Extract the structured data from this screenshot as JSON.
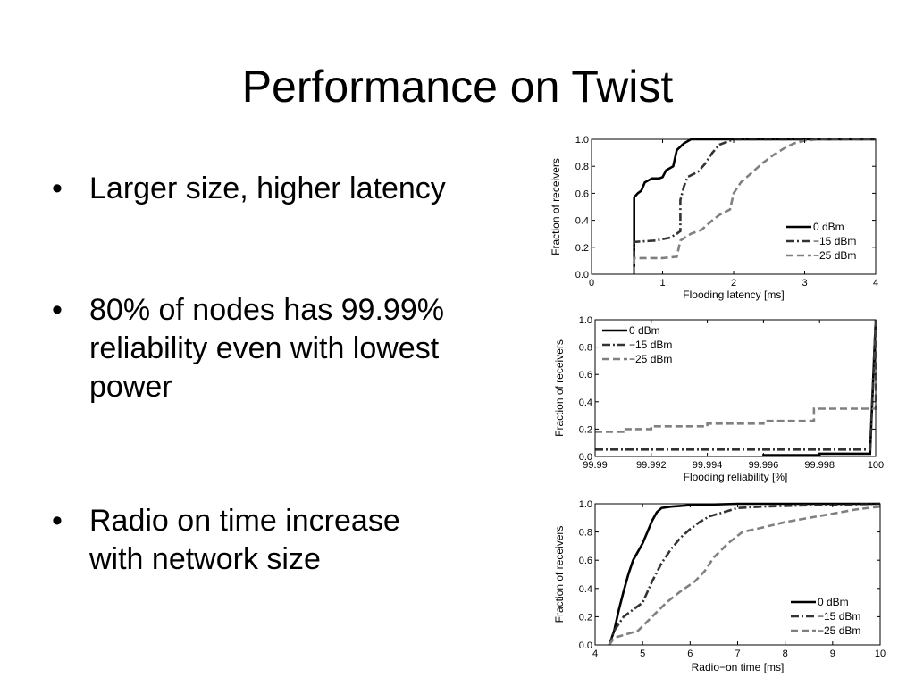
{
  "slide": {
    "title": "Performance on Twist",
    "bullets": [
      {
        "marker": "•",
        "lines": [
          "Larger size, higher latency"
        ]
      },
      {
        "marker": "•",
        "lines": [
          "80% of nodes has 99.99%",
          "reliability even with lowest",
          "power"
        ]
      },
      {
        "marker": "•",
        "lines": [
          "Radio on time increase",
          "with network size"
        ]
      }
    ]
  },
  "chart_data": [
    {
      "type": "line",
      "xlabel": "Flooding latency [ms]",
      "ylabel": "Fraction of receivers",
      "xlim": [
        0,
        4
      ],
      "ylim": [
        0,
        1
      ],
      "xticks": [
        0,
        1,
        2,
        3,
        4
      ],
      "xtick_labels": [
        "0",
        "1",
        "2",
        "3",
        "4"
      ],
      "yticks": [
        0,
        0.2,
        0.4,
        0.6,
        0.8,
        1.0
      ],
      "ytick_labels": [
        "0.0",
        "0.2",
        "0.4",
        "0.6",
        "0.8",
        "1.0"
      ],
      "legend_position": "bottom-right",
      "series": [
        {
          "name": "0 dBm",
          "color": "#000000",
          "dash": "solid",
          "points": [
            [
              0.6,
              0
            ],
            [
              0.6,
              0.57
            ],
            [
              0.65,
              0.6
            ],
            [
              0.7,
              0.62
            ],
            [
              0.75,
              0.68
            ],
            [
              0.85,
              0.71
            ],
            [
              0.95,
              0.71
            ],
            [
              1.0,
              0.72
            ],
            [
              1.05,
              0.77
            ],
            [
              1.15,
              0.8
            ],
            [
              1.2,
              0.92
            ],
            [
              1.3,
              0.97
            ],
            [
              1.4,
              1.0
            ],
            [
              4.0,
              1.0
            ]
          ]
        },
        {
          "name": "−15 dBm",
          "color": "#333333",
          "dash": "dashdot",
          "points": [
            [
              0.6,
              0
            ],
            [
              0.6,
              0.24
            ],
            [
              0.9,
              0.25
            ],
            [
              1.1,
              0.27
            ],
            [
              1.2,
              0.3
            ],
            [
              1.25,
              0.32
            ],
            [
              1.25,
              0.55
            ],
            [
              1.3,
              0.65
            ],
            [
              1.35,
              0.72
            ],
            [
              1.5,
              0.76
            ],
            [
              1.6,
              0.82
            ],
            [
              1.7,
              0.9
            ],
            [
              1.8,
              0.96
            ],
            [
              2.0,
              1.0
            ],
            [
              4.0,
              1.0
            ]
          ]
        },
        {
          "name": "−25 dBm",
          "color": "#808080",
          "dash": "dash",
          "points": [
            [
              0.6,
              0
            ],
            [
              0.6,
              0.12
            ],
            [
              0.8,
              0.12
            ],
            [
              1.0,
              0.12
            ],
            [
              1.2,
              0.13
            ],
            [
              1.25,
              0.25
            ],
            [
              1.4,
              0.3
            ],
            [
              1.55,
              0.33
            ],
            [
              1.7,
              0.4
            ],
            [
              1.8,
              0.44
            ],
            [
              1.95,
              0.48
            ],
            [
              2.0,
              0.6
            ],
            [
              2.1,
              0.68
            ],
            [
              2.25,
              0.75
            ],
            [
              2.4,
              0.82
            ],
            [
              2.55,
              0.88
            ],
            [
              2.7,
              0.93
            ],
            [
              2.85,
              0.97
            ],
            [
              3.0,
              0.99
            ],
            [
              3.2,
              1.0
            ],
            [
              4.0,
              1.0
            ]
          ]
        }
      ]
    },
    {
      "type": "line",
      "xlabel": "Flooding reliability [%]",
      "ylabel": "Fraction of receivers",
      "xlim": [
        99.99,
        100
      ],
      "ylim": [
        0,
        1
      ],
      "xticks": [
        99.99,
        99.992,
        99.994,
        99.996,
        99.998,
        100
      ],
      "xtick_labels": [
        "99.99",
        "99.992",
        "99.994",
        "99.996",
        "99.998",
        "100"
      ],
      "yticks": [
        0,
        0.2,
        0.4,
        0.6,
        0.8,
        1.0
      ],
      "ytick_labels": [
        "0.0",
        "0.2",
        "0.4",
        "0.6",
        "0.8",
        "1.0"
      ],
      "legend_position": "top-left",
      "series": [
        {
          "name": "0 dBm",
          "color": "#000000",
          "dash": "solid",
          "points": [
            [
              99.996,
              0
            ],
            [
              99.996,
              0.01
            ],
            [
              99.998,
              0.01
            ],
            [
              99.998,
              0.02
            ],
            [
              99.9998,
              0.02
            ],
            [
              100,
              1.0
            ]
          ]
        },
        {
          "name": "−15 dBm",
          "color": "#333333",
          "dash": "dashdot",
          "points": [
            [
              99.99,
              0.05
            ],
            [
              99.9998,
              0.05
            ],
            [
              100,
              1.0
            ]
          ]
        },
        {
          "name": "−25 dBm",
          "color": "#808080",
          "dash": "dash",
          "points": [
            [
              99.99,
              0.18
            ],
            [
              99.991,
              0.18
            ],
            [
              99.991,
              0.2
            ],
            [
              99.992,
              0.2
            ],
            [
              99.992,
              0.22
            ],
            [
              99.994,
              0.22
            ],
            [
              99.994,
              0.24
            ],
            [
              99.996,
              0.24
            ],
            [
              99.996,
              0.26
            ],
            [
              99.9978,
              0.26
            ],
            [
              99.9978,
              0.35
            ],
            [
              100,
              0.35
            ],
            [
              100,
              1.0
            ]
          ]
        }
      ]
    },
    {
      "type": "line",
      "xlabel": "Radio−on time [ms]",
      "ylabel": "Fraction of receivers",
      "xlim": [
        4,
        10
      ],
      "ylim": [
        0,
        1
      ],
      "xticks": [
        4,
        5,
        6,
        7,
        8,
        9,
        10
      ],
      "xtick_labels": [
        "4",
        "5",
        "6",
        "7",
        "8",
        "9",
        "10"
      ],
      "yticks": [
        0,
        0.2,
        0.4,
        0.6,
        0.8,
        1.0
      ],
      "ytick_labels": [
        "0.0",
        "0.2",
        "0.4",
        "0.6",
        "0.8",
        "1.0"
      ],
      "legend_position": "bottom-right",
      "series": [
        {
          "name": "0 dBm",
          "color": "#000000",
          "dash": "solid",
          "points": [
            [
              4.3,
              0
            ],
            [
              4.4,
              0.1
            ],
            [
              4.5,
              0.25
            ],
            [
              4.6,
              0.38
            ],
            [
              4.7,
              0.5
            ],
            [
              4.8,
              0.6
            ],
            [
              4.9,
              0.66
            ],
            [
              5.0,
              0.72
            ],
            [
              5.1,
              0.8
            ],
            [
              5.2,
              0.88
            ],
            [
              5.3,
              0.94
            ],
            [
              5.4,
              0.97
            ],
            [
              5.6,
              0.98
            ],
            [
              6.0,
              0.99
            ],
            [
              7.0,
              1.0
            ],
            [
              10,
              1.0
            ]
          ]
        },
        {
          "name": "−15 dBm",
          "color": "#333333",
          "dash": "dashdot",
          "points": [
            [
              4.3,
              0
            ],
            [
              4.4,
              0.1
            ],
            [
              4.6,
              0.2
            ],
            [
              4.8,
              0.25
            ],
            [
              5.0,
              0.3
            ],
            [
              5.2,
              0.45
            ],
            [
              5.4,
              0.58
            ],
            [
              5.6,
              0.68
            ],
            [
              5.8,
              0.76
            ],
            [
              6.0,
              0.82
            ],
            [
              6.2,
              0.87
            ],
            [
              6.4,
              0.91
            ],
            [
              6.7,
              0.94
            ],
            [
              7.0,
              0.97
            ],
            [
              7.5,
              0.98
            ],
            [
              8.5,
              0.99
            ],
            [
              10,
              1.0
            ]
          ]
        },
        {
          "name": "−25 dBm",
          "color": "#808080",
          "dash": "dash",
          "points": [
            [
              4.3,
              0
            ],
            [
              4.4,
              0.05
            ],
            [
              4.6,
              0.07
            ],
            [
              4.9,
              0.1
            ],
            [
              5.2,
              0.2
            ],
            [
              5.5,
              0.3
            ],
            [
              5.8,
              0.38
            ],
            [
              6.1,
              0.45
            ],
            [
              6.3,
              0.52
            ],
            [
              6.5,
              0.62
            ],
            [
              6.8,
              0.72
            ],
            [
              7.1,
              0.8
            ],
            [
              7.5,
              0.83
            ],
            [
              8.0,
              0.87
            ],
            [
              8.5,
              0.9
            ],
            [
              9.0,
              0.93
            ],
            [
              9.5,
              0.96
            ],
            [
              10,
              0.98
            ]
          ]
        }
      ]
    }
  ]
}
